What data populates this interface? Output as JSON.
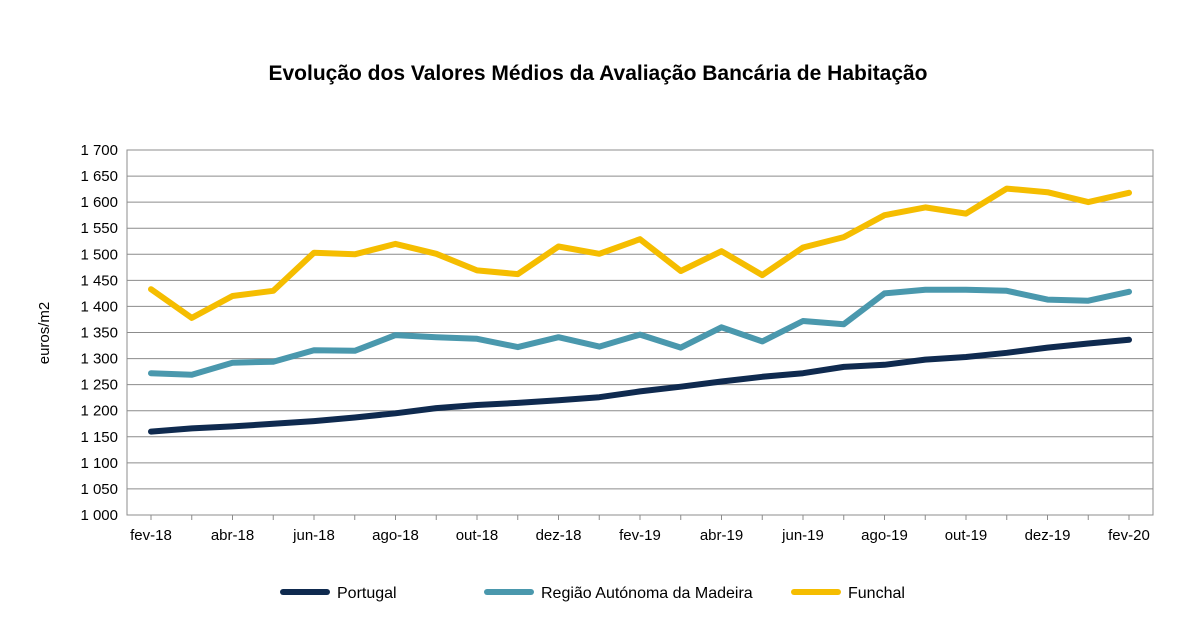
{
  "chart_data": {
    "type": "line",
    "title": "Evolução dos Valores Médios da Avaliação Bancária de Habitação",
    "xlabel": "",
    "ylabel": "euros/m2",
    "ylim": [
      1000,
      1700
    ],
    "yticks": [
      1000,
      1050,
      1100,
      1150,
      1200,
      1250,
      1300,
      1350,
      1400,
      1450,
      1500,
      1550,
      1600,
      1650,
      1700
    ],
    "ytick_labels": [
      "1 000",
      "1 050",
      "1 100",
      "1 150",
      "1 200",
      "1 250",
      "1 300",
      "1 350",
      "1 400",
      "1 450",
      "1 500",
      "1 550",
      "1 600",
      "1 650",
      "1 700"
    ],
    "x": [
      "fev-18",
      "mar-18",
      "abr-18",
      "mai-18",
      "jun-18",
      "jul-18",
      "ago-18",
      "set-18",
      "out-18",
      "nov-18",
      "dez-18",
      "jan-19",
      "fev-19",
      "mar-19",
      "abr-19",
      "mai-19",
      "jun-19",
      "jul-19",
      "ago-19",
      "set-19",
      "out-19",
      "nov-19",
      "dez-19",
      "jan-20",
      "fev-20"
    ],
    "x_tick_labels": [
      "fev-18",
      "",
      "abr-18",
      "",
      "jun-18",
      "",
      "ago-18",
      "",
      "out-18",
      "",
      "dez-18",
      "",
      "fev-19",
      "",
      "abr-19",
      "",
      "jun-19",
      "",
      "ago-19",
      "",
      "out-19",
      "",
      "dez-19",
      "",
      "fev-20"
    ],
    "grid": true,
    "legend_position": "bottom",
    "series": [
      {
        "name": "Portugal",
        "color": "#0f2a4f",
        "values": [
          1160,
          1166,
          1170,
          1175,
          1180,
          1187,
          1195,
          1205,
          1211,
          1215,
          1220,
          1226,
          1237,
          1246,
          1256,
          1265,
          1272,
          1284,
          1288,
          1298,
          1303,
          1311,
          1321,
          1329,
          1336
        ]
      },
      {
        "name": "Região Autónoma da Madeira",
        "color": "#4a98ad",
        "values": [
          1272,
          1269,
          1292,
          1294,
          1316,
          1315,
          1345,
          1341,
          1338,
          1322,
          1341,
          1323,
          1346,
          1321,
          1360,
          1333,
          1372,
          1366,
          1425,
          1432,
          1432,
          1430,
          1413,
          1411,
          1428
        ]
      },
      {
        "name": "Funchal",
        "color": "#f5bd00",
        "values": [
          1433,
          1378,
          1420,
          1430,
          1503,
          1500,
          1520,
          1501,
          1469,
          1462,
          1515,
          1501,
          1529,
          1468,
          1506,
          1460,
          1513,
          1533,
          1575,
          1590,
          1578,
          1626,
          1619,
          1600,
          1618
        ]
      }
    ]
  }
}
